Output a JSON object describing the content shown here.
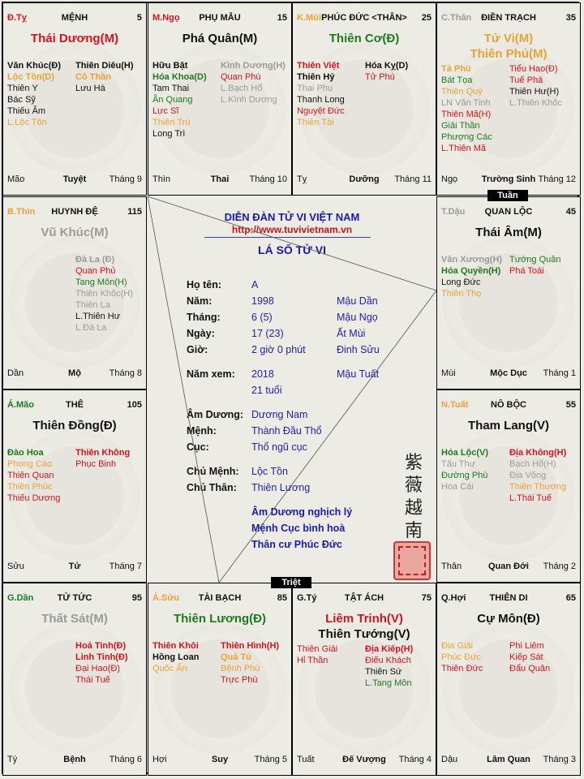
{
  "colors": {
    "red": "#d0141e",
    "green": "#1e7a1e",
    "orange": "#e8a23a",
    "gray": "#9a9a9a",
    "black": "#111111",
    "blue": "#1a1aaa"
  },
  "palaces": [
    {
      "canchi": "Đ.Tỵ",
      "canchi_color": "#d0141e",
      "name": "MỆNH",
      "num": "5",
      "main": [
        {
          "t": "Thái Dương(M)",
          "c": "#d0141e"
        }
      ],
      "left": [
        {
          "t": "Văn Khúc(Đ)",
          "c": "#111111",
          "b": true
        },
        {
          "t": "Lộc Tồn(D)",
          "c": "#e8a23a",
          "b": true
        },
        {
          "t": "Thiên Y",
          "c": "#111111"
        },
        {
          "t": "Bác Sỹ",
          "c": "#111111"
        },
        {
          "t": "Thiếu Âm",
          "c": "#111111"
        },
        {
          "t": "L.Lộc Tồn",
          "c": "#e8a23a"
        }
      ],
      "right": [
        {
          "t": "Thiên Diêu(H)",
          "c": "#111111",
          "b": true
        },
        {
          "t": "Cô Thần",
          "c": "#e8a23a",
          "b": true
        },
        {
          "t": "Lưu Hà",
          "c": "#111111"
        }
      ],
      "branch": "Mão",
      "stage": "Tuyệt",
      "month": "Tháng 9"
    },
    {
      "canchi": "M.Ngọ",
      "canchi_color": "#d0141e",
      "name": "PHỤ MẪU",
      "num": "15",
      "main": [
        {
          "t": "Phá Quân(M)",
          "c": "#111111"
        }
      ],
      "left": [
        {
          "t": "Hữu Bật",
          "c": "#111111",
          "b": true
        },
        {
          "t": "Hóa Khoa(D)",
          "c": "#1e7a1e",
          "b": true
        },
        {
          "t": "Tam Thai",
          "c": "#111111"
        },
        {
          "t": "Ân Quang",
          "c": "#1e7a1e"
        },
        {
          "t": "Lực Sĩ",
          "c": "#d0141e"
        },
        {
          "t": "Thiên Trù",
          "c": "#e8a23a"
        },
        {
          "t": "Long Trì",
          "c": "#111111"
        }
      ],
      "right": [
        {
          "t": "Kình Dương(H)",
          "c": "#9a9a9a",
          "b": true
        },
        {
          "t": "Quan Phù",
          "c": "#d0141e"
        },
        {
          "t": "L.Bạch Hổ",
          "c": "#9a9a9a"
        },
        {
          "t": "L.Kình Dương",
          "c": "#9a9a9a"
        }
      ],
      "branch": "Thìn",
      "stage": "Thai",
      "month": "Tháng 10"
    },
    {
      "canchi": "K.Mùi",
      "canchi_color": "#e8a23a",
      "name": "PHÚC ĐỨC <THÂN>",
      "num": "25",
      "main": [
        {
          "t": "Thiên Cơ(Đ)",
          "c": "#1e7a1e"
        }
      ],
      "left": [
        {
          "t": "Thiên Việt",
          "c": "#d0141e",
          "b": true
        },
        {
          "t": "Thiên Hỷ",
          "c": "#111111",
          "b": true
        },
        {
          "t": "Thai Phụ",
          "c": "#9a9a9a"
        },
        {
          "t": "Thanh Long",
          "c": "#111111"
        },
        {
          "t": "Nguyệt Đức",
          "c": "#d0141e"
        },
        {
          "t": "Thiên Tài",
          "c": "#e8a23a"
        }
      ],
      "right": [
        {
          "t": "Hóa Kỵ(D)",
          "c": "#111111",
          "b": true
        },
        {
          "t": "Tử Phù",
          "c": "#d0141e"
        }
      ],
      "branch": "Tỵ",
      "stage": "Dưỡng",
      "month": "Tháng 11"
    },
    {
      "canchi": "C.Thân",
      "canchi_color": "#9a9a9a",
      "name": "ĐIỀN TRẠCH",
      "num": "35",
      "main": [
        {
          "t": "Tử Vi(M)",
          "c": "#e8a23a"
        },
        {
          "t": "Thiên Phủ(M)",
          "c": "#e8a23a"
        }
      ],
      "left": [
        {
          "t": "Tả Phù",
          "c": "#e8a23a",
          "b": true
        },
        {
          "t": "Bát Tọa",
          "c": "#1e7a1e"
        },
        {
          "t": "Thiên Quý",
          "c": "#e8a23a"
        },
        {
          "t": "LN Văn Tinh",
          "c": "#9a9a9a"
        },
        {
          "t": "Thiên Mã(H)",
          "c": "#d0141e"
        },
        {
          "t": "Giải Thần",
          "c": "#1e7a1e"
        },
        {
          "t": "Phượng Các",
          "c": "#1e7a1e"
        },
        {
          "t": "L.Thiên Mã",
          "c": "#d0141e"
        }
      ],
      "right": [
        {
          "t": "Tiểu Hao(Đ)",
          "c": "#d0141e"
        },
        {
          "t": "Tuế Phá",
          "c": "#d0141e"
        },
        {
          "t": "Thiên Hư(H)",
          "c": "#111111"
        },
        {
          "t": "L.Thiên Khốc",
          "c": "#9a9a9a"
        }
      ],
      "branch": "Ngọ",
      "stage": "Trường Sinh",
      "month": "Tháng 12"
    },
    {
      "canchi": "B.Thìn",
      "canchi_color": "#e8a23a",
      "name": "HUYNH ĐỆ",
      "num": "115",
      "main": [
        {
          "t": "Vũ Khúc(M)",
          "c": "#9a9a9a"
        }
      ],
      "left": [],
      "right": [
        {
          "t": "Đà La (Đ)",
          "c": "#9a9a9a",
          "b": true
        },
        {
          "t": "Quan Phủ",
          "c": "#d0141e"
        },
        {
          "t": "Tang Môn(H)",
          "c": "#1e7a1e"
        },
        {
          "t": "Thiên Khốc(H)",
          "c": "#9a9a9a"
        },
        {
          "t": "Thiên La",
          "c": "#9a9a9a"
        },
        {
          "t": "L.Thiên Hư",
          "c": "#111111"
        },
        {
          "t": "L.Đà La",
          "c": "#9a9a9a"
        }
      ],
      "branch": "Dần",
      "stage": "Mộ",
      "month": "Tháng 8"
    },
    {
      "canchi": "T.Dậu",
      "canchi_color": "#9a9a9a",
      "name": "QUAN LỘC",
      "num": "45",
      "main": [
        {
          "t": "Thái Âm(M)",
          "c": "#111111"
        }
      ],
      "left": [
        {
          "t": "Văn Xương(H)",
          "c": "#9a9a9a",
          "b": true
        },
        {
          "t": "Hóa Quyền(H)",
          "c": "#1e7a1e",
          "b": true
        },
        {
          "t": "Long Đức",
          "c": "#111111"
        },
        {
          "t": "Thiên Thọ",
          "c": "#e8a23a"
        }
      ],
      "right": [
        {
          "t": "Tướng Quân",
          "c": "#1e7a1e"
        },
        {
          "t": "Phá Toái",
          "c": "#d0141e"
        }
      ],
      "branch": "Mùi",
      "stage": "Mộc Dục",
      "month": "Tháng 1"
    },
    {
      "canchi": "Á.Mão",
      "canchi_color": "#1e7a1e",
      "name": "THÊ",
      "num": "105",
      "main": [
        {
          "t": "Thiên Đồng(Đ)",
          "c": "#111111"
        }
      ],
      "left": [
        {
          "t": "Đào Hoa",
          "c": "#1e7a1e",
          "b": true
        },
        {
          "t": "Phong Cáo",
          "c": "#e8a23a"
        },
        {
          "t": "Thiên Quan",
          "c": "#d0141e"
        },
        {
          "t": "Thiên Phúc",
          "c": "#e8a23a"
        },
        {
          "t": "Thiếu Dương",
          "c": "#d0141e"
        }
      ],
      "right": [
        {
          "t": "Thiên Không",
          "c": "#d0141e",
          "b": true
        },
        {
          "t": "Phục Binh",
          "c": "#d0141e"
        }
      ],
      "branch": "Sửu",
      "stage": "Tử",
      "month": "Tháng 7"
    },
    {
      "canchi": "N.Tuất",
      "canchi_color": "#e8a23a",
      "name": "NÔ BỘC",
      "num": "55",
      "main": [
        {
          "t": "Tham Lang(V)",
          "c": "#111111"
        }
      ],
      "left": [
        {
          "t": "Hóa Lộc(V)",
          "c": "#1e7a1e",
          "b": true
        },
        {
          "t": "Tấu Thư",
          "c": "#9a9a9a"
        },
        {
          "t": "Đường Phù",
          "c": "#1e7a1e"
        },
        {
          "t": "Hoa Cái",
          "c": "#9a9a9a"
        }
      ],
      "right": [
        {
          "t": "Địa Không(H)",
          "c": "#d0141e",
          "b": true
        },
        {
          "t": "Bạch Hổ(H)",
          "c": "#9a9a9a"
        },
        {
          "t": "Địa Võng",
          "c": "#9a9a9a"
        },
        {
          "t": "Thiên Thương",
          "c": "#e8a23a"
        },
        {
          "t": "L.Thái Tuế",
          "c": "#d0141e"
        }
      ],
      "branch": "Thân",
      "stage": "Quan Đới",
      "month": "Tháng 2"
    },
    {
      "canchi": "G.Dần",
      "canchi_color": "#1e7a1e",
      "name": "TỬ TỨC",
      "num": "95",
      "main": [
        {
          "t": "Thất Sát(M)",
          "c": "#9a9a9a"
        }
      ],
      "left": [],
      "right": [
        {
          "t": "Hoả Tinh(Đ)",
          "c": "#d0141e",
          "b": true
        },
        {
          "t": "Linh Tinh(Đ)",
          "c": "#d0141e",
          "b": true
        },
        {
          "t": "Đại Hao(Đ)",
          "c": "#d0141e"
        },
        {
          "t": "Thái Tuế",
          "c": "#d0141e"
        }
      ],
      "branch": "Tý",
      "stage": "Bệnh",
      "month": "Tháng 6"
    },
    {
      "canchi": "Á.Sửu",
      "canchi_color": "#e8a23a",
      "name": "TÀI BẠCH",
      "num": "85",
      "main": [
        {
          "t": "Thiên Lương(Đ)",
          "c": "#1e7a1e"
        }
      ],
      "left": [
        {
          "t": "Thiên Khôi",
          "c": "#d0141e",
          "b": true
        },
        {
          "t": "Hồng Loan",
          "c": "#111111",
          "b": true
        },
        {
          "t": "Quốc Ấn",
          "c": "#e8a23a"
        }
      ],
      "right": [
        {
          "t": "Thiên Hình(H)",
          "c": "#d0141e",
          "b": true
        },
        {
          "t": "Quả Tú",
          "c": "#e8a23a",
          "b": true
        },
        {
          "t": "Bệnh Phù",
          "c": "#e8a23a"
        },
        {
          "t": "Trực Phù",
          "c": "#d0141e"
        }
      ],
      "branch": "Hợi",
      "stage": "Suy",
      "month": "Tháng 5"
    },
    {
      "canchi": "G.Tý",
      "canchi_color": "#111111",
      "name": "TẬT ÁCH",
      "num": "75",
      "main": [
        {
          "t": "Liêm Trinh(V)",
          "c": "#d0141e"
        },
        {
          "t": "Thiên Tướng(V)",
          "c": "#111111"
        }
      ],
      "left": [
        {
          "t": "Thiên Giải",
          "c": "#d0141e"
        },
        {
          "t": "Hỉ Thần",
          "c": "#d0141e"
        }
      ],
      "right": [
        {
          "t": "Địa Kiếp(H)",
          "c": "#d0141e",
          "b": true
        },
        {
          "t": "Điếu Khách",
          "c": "#d0141e"
        },
        {
          "t": "Thiên Sứ",
          "c": "#111111"
        },
        {
          "t": "L.Tang Môn",
          "c": "#1e7a1e"
        }
      ],
      "branch": "Tuất",
      "stage": "Đế Vượng",
      "month": "Tháng 4"
    },
    {
      "canchi": "Q.Hợi",
      "canchi_color": "#111111",
      "name": "THIÊN DI",
      "num": "65",
      "main": [
        {
          "t": "Cự Môn(Đ)",
          "c": "#111111"
        }
      ],
      "left": [
        {
          "t": "Địa Giải",
          "c": "#e8a23a"
        },
        {
          "t": "Phúc Đức",
          "c": "#e8a23a"
        },
        {
          "t": "Thiên Đức",
          "c": "#d0141e"
        }
      ],
      "right": [
        {
          "t": "Phi Liêm",
          "c": "#d0141e"
        },
        {
          "t": "Kiếp Sát",
          "c": "#d0141e"
        },
        {
          "t": "Đẩu Quân",
          "c": "#d0141e"
        }
      ],
      "branch": "Dậu",
      "stage": "Lâm Quan",
      "month": "Tháng 3"
    }
  ],
  "markers": {
    "tuan": "Tuần",
    "triet": "Triệt"
  },
  "center": {
    "forum": "DIỄN ĐÀN TỬ VI VIỆT NAM",
    "url": "http://www.tuvivietnam.vn",
    "title": "LÁ SỐ TỬ VI",
    "rows": [
      {
        "label": "Họ tên:",
        "v1": "A",
        "v2": ""
      },
      {
        "label": "Năm:",
        "v1": "1998",
        "v2": "Mậu Dần"
      },
      {
        "label": "Tháng:",
        "v1": "6 (5)",
        "v2": "Mậu Ngọ"
      },
      {
        "label": "Ngày:",
        "v1": "17 (23)",
        "v2": "Ất Mùi"
      },
      {
        "label": "Giờ:",
        "v1": "2 giờ 0 phút",
        "v2": "Đinh Sửu"
      },
      {
        "label": "Năm xem:",
        "v1": "2018",
        "v2": "Mậu Tuất"
      },
      {
        "label": "",
        "v1": "21 tuổi",
        "v2": ""
      },
      {
        "label": "Âm Dương:",
        "v1": "Dương Nam",
        "v2": ""
      },
      {
        "label": "Mệnh:",
        "v1": "Thành Đầu Thổ",
        "v2": ""
      },
      {
        "label": "Cục:",
        "v1": "Thổ ngũ cục",
        "v2": ""
      },
      {
        "label": "Chủ Mệnh:",
        "v1": "Lộc Tồn",
        "v2": ""
      },
      {
        "label": "Chủ Thân:",
        "v1": "Thiên Lương",
        "v2": ""
      }
    ],
    "notes": [
      "Âm Dương nghịch lý",
      "Mệnh Cục bình hoà",
      "Thân cư Phúc Đức"
    ],
    "han_chars": [
      "紫",
      "薇",
      "越",
      "南"
    ]
  }
}
